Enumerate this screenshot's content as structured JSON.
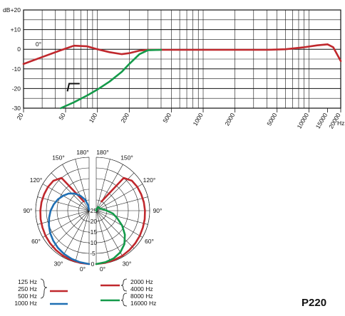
{
  "model": "P220",
  "chart_data": [
    {
      "type": "line",
      "xscale": "log",
      "xlim": [
        20,
        20000
      ],
      "ylim": [
        -30,
        20
      ],
      "ylabel": "dB",
      "xunit": "Hz",
      "grid": true,
      "xticks": [
        20,
        50,
        100,
        200,
        500,
        1000,
        2000,
        5000,
        10000,
        15000,
        20000
      ],
      "yticks": [
        20,
        10,
        0,
        -10,
        -20,
        -30
      ],
      "ytick_labels": [
        "+20",
        "+10",
        "0",
        "-10",
        "-20",
        "-30"
      ],
      "annotations": [
        "0°"
      ],
      "series": [
        {
          "color": "#c0282d",
          "x": [
            20,
            30,
            45,
            60,
            80,
            100,
            130,
            170,
            200,
            250,
            300,
            500,
            1000,
            2000,
            4000,
            6000,
            9000,
            12000,
            15000,
            17000,
            20000
          ],
          "y": [
            -7.5,
            -4,
            -0.5,
            1.8,
            1.5,
            0,
            -1.5,
            -2.5,
            -2,
            -0.7,
            -0.3,
            -0.3,
            -0.3,
            -0.3,
            -0.3,
            0,
            1,
            2,
            2.5,
            1,
            -6
          ]
        },
        {
          "color": "#149a4a",
          "x": [
            45,
            60,
            80,
            100,
            130,
            170,
            200,
            250,
            300,
            400
          ],
          "y": [
            -30,
            -27,
            -23.5,
            -20.5,
            -16.5,
            -11.5,
            -7.5,
            -2.5,
            -0.5,
            -0.3
          ]
        }
      ]
    },
    {
      "type": "polar",
      "angle_ticks": [
        "180°",
        "150°",
        "120°",
        "90°",
        "60°",
        "30°",
        "0°"
      ],
      "radial_ticks": [
        "-25",
        "-20",
        "-15",
        "-10",
        "-5",
        "0"
      ],
      "rlim": [
        -25,
        0
      ],
      "legend_left": {
        "entries": [
          {
            "freqs": [
              "125 Hz",
              "250 Hz",
              "500 Hz"
            ],
            "color": "#c0282d"
          },
          {
            "freqs": [
              "1000 Hz"
            ],
            "color": "#1f6fb3"
          }
        ]
      },
      "legend_right": {
        "entries": [
          {
            "freqs": [
              "2000 Hz",
              "4000 Hz"
            ],
            "color": "#c0282d"
          },
          {
            "freqs": [
              "8000 Hz",
              "16000 Hz"
            ],
            "color": "#149a4a"
          }
        ]
      },
      "series": [
        {
          "side": "left",
          "color": "#c0282d",
          "angles": [
            0,
            10,
            20,
            30,
            40,
            50,
            60,
            70,
            80,
            90,
            100,
            110,
            120,
            130,
            140,
            150
          ],
          "values": [
            0,
            -0.2,
            -0.4,
            -0.6,
            -0.9,
            -1.2,
            -1.5,
            -1.8,
            -2.0,
            -2.2,
            -2.4,
            -2.6,
            -2.8,
            -3.2,
            -5,
            -20
          ]
        },
        {
          "side": "left",
          "color": "#1f6fb3",
          "angles": [
            0,
            10,
            20,
            30,
            40,
            50,
            60,
            70,
            80,
            90,
            100,
            110,
            120,
            130,
            140,
            150,
            160,
            170,
            175
          ],
          "values": [
            0,
            -0.5,
            -1.0,
            -1.6,
            -2.3,
            -3.1,
            -4.0,
            -5.0,
            -6.0,
            -7.0,
            -8.2,
            -9.5,
            -11,
            -12.5,
            -14.5,
            -17,
            -19.5,
            -22.5,
            -24.5
          ]
        },
        {
          "side": "right",
          "color": "#c0282d",
          "angles": [
            0,
            10,
            20,
            30,
            40,
            50,
            60,
            70,
            80,
            90,
            100,
            110,
            120,
            130,
            140,
            150
          ],
          "values": [
            0,
            -0.2,
            -0.4,
            -0.6,
            -0.9,
            -1.2,
            -1.5,
            -1.8,
            -2.0,
            -2.2,
            -2.4,
            -2.6,
            -2.8,
            -3.2,
            -5,
            -20
          ]
        },
        {
          "side": "right",
          "color": "#149a4a",
          "angles": [
            0,
            10,
            20,
            30,
            40,
            50,
            60,
            70,
            80,
            90,
            100,
            110,
            120,
            130,
            140,
            150,
            160,
            170,
            175
          ],
          "values": [
            0,
            -0.5,
            -1.2,
            -2.5,
            -4.5,
            -7.5,
            -11,
            -14.5,
            -17,
            -20,
            -21.5,
            -22.5,
            -23,
            -23,
            -23,
            -23,
            -24,
            -24.5,
            -25
          ]
        }
      ]
    }
  ]
}
